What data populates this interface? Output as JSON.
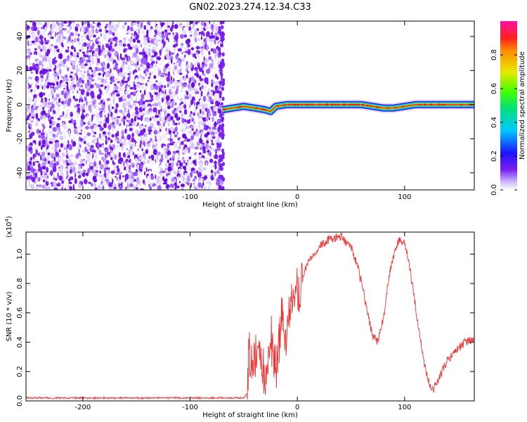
{
  "title": "GN02.2023.274.12.34.C33",
  "chart_data": [
    {
      "type": "heatmap",
      "xlabel": "Height of straight line (km)",
      "ylabel": "Frequency (Hz)",
      "xlim": [
        -253,
        165
      ],
      "ylim": [
        -50,
        49
      ],
      "xticks": [
        -200,
        -100,
        0,
        100
      ],
      "yticks": [
        -40,
        -20,
        0,
        20,
        40
      ],
      "colorbar": {
        "label": "Normalized spectral amplitude",
        "range": [
          0.0,
          1.0
        ],
        "ticks": [
          0.0,
          0.2,
          0.4,
          0.6,
          0.8
        ]
      },
      "noise_region_x": [
        -253,
        -70
      ],
      "signal_line": {
        "x": [
          -70,
          -60,
          -50,
          -40,
          -30,
          -25,
          -20,
          -10,
          0,
          10,
          20,
          30,
          40,
          50,
          60,
          70,
          80,
          90,
          100,
          110,
          120,
          130,
          140,
          150,
          160,
          165
        ],
        "frequency": [
          -3,
          -2,
          -1,
          -2,
          -3,
          -4,
          -1,
          0,
          0,
          0,
          0,
          0,
          0,
          0,
          0,
          -1,
          -2,
          -2,
          -1,
          0,
          0,
          0,
          0,
          0,
          0,
          0
        ]
      }
    },
    {
      "type": "line",
      "xlabel": "Height of straight line (km)",
      "ylabel": "SNR (10 * v/v)",
      "yscale_label": "(x10",
      "yscale_exp": "4",
      "yscale_suffix": ")",
      "xlim": [
        -253,
        165
      ],
      "ylim": [
        0.0,
        1.15
      ],
      "xticks": [
        -200,
        -100,
        0,
        100
      ],
      "yticks": [
        0.0,
        0.2,
        0.4,
        0.6,
        0.8,
        1.0
      ],
      "series": [
        {
          "color": "#ee3333",
          "x": [
            -253,
            -200,
            -100,
            -50,
            -47,
            -45,
            -40,
            -35,
            -30,
            -25,
            -20,
            -15,
            -10,
            -5,
            0,
            5,
            10,
            20,
            30,
            40,
            50,
            55,
            60,
            65,
            70,
            75,
            80,
            85,
            90,
            95,
            100,
            105,
            110,
            115,
            120,
            125,
            130,
            135,
            140,
            150,
            160,
            165
          ],
          "y": [
            0.02,
            0.02,
            0.02,
            0.02,
            0.05,
            0.3,
            0.25,
            0.35,
            0.15,
            0.45,
            0.2,
            0.55,
            0.45,
            0.7,
            0.7,
            0.85,
            0.95,
            1.05,
            1.1,
            1.12,
            1.05,
            0.95,
            0.8,
            0.62,
            0.45,
            0.4,
            0.55,
            0.82,
            1.0,
            1.1,
            1.08,
            0.9,
            0.65,
            0.4,
            0.2,
            0.06,
            0.12,
            0.2,
            0.28,
            0.36,
            0.42,
            0.4
          ]
        }
      ]
    }
  ]
}
